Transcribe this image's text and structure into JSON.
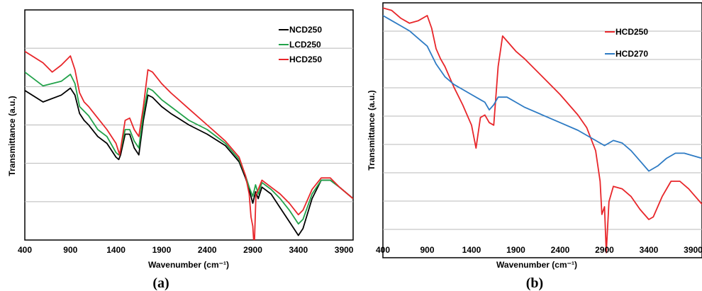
{
  "chart_data": [
    {
      "type": "line",
      "panel_label": "(a)",
      "xlabel": "Wavenumber (cm⁻¹)",
      "ylabel": "Transmittance (a.u.)",
      "xlim": [
        400,
        4000
      ],
      "ylim": [
        0,
        100
      ],
      "x_ticks": [
        400,
        900,
        1400,
        1900,
        2400,
        2900,
        3400,
        3900
      ],
      "grid": "horizontal",
      "legend_position": "top-right",
      "series": [
        {
          "name": "NCD250",
          "color": "#000000",
          "points": [
            [
              400,
              65
            ],
            [
              600,
              60
            ],
            [
              800,
              63
            ],
            [
              900,
              66
            ],
            [
              950,
              63
            ],
            [
              1000,
              55
            ],
            [
              1050,
              52
            ],
            [
              1100,
              50
            ],
            [
              1200,
              45
            ],
            [
              1300,
              42
            ],
            [
              1400,
              36
            ],
            [
              1430,
              35
            ],
            [
              1450,
              37
            ],
            [
              1500,
              46
            ],
            [
              1550,
              46
            ],
            [
              1600,
              40
            ],
            [
              1650,
              37
            ],
            [
              1700,
              52
            ],
            [
              1750,
              63
            ],
            [
              1800,
              62
            ],
            [
              1900,
              58
            ],
            [
              2000,
              55
            ],
            [
              2200,
              50
            ],
            [
              2400,
              46
            ],
            [
              2600,
              41
            ],
            [
              2750,
              34
            ],
            [
              2820,
              27
            ],
            [
              2860,
              22
            ],
            [
              2900,
              16
            ],
            [
              2930,
              21
            ],
            [
              2960,
              18
            ],
            [
              3000,
              23
            ],
            [
              3100,
              20
            ],
            [
              3200,
              14
            ],
            [
              3300,
              8
            ],
            [
              3400,
              2
            ],
            [
              3450,
              5
            ],
            [
              3550,
              18
            ],
            [
              3650,
              26
            ],
            [
              3750,
              26
            ],
            [
              3850,
              23
            ],
            [
              4000,
              18
            ]
          ]
        },
        {
          "name": "LCD250",
          "color": "#22a24a",
          "points": [
            [
              400,
              73
            ],
            [
              600,
              67
            ],
            [
              800,
              69
            ],
            [
              900,
              72
            ],
            [
              950,
              68
            ],
            [
              1000,
              58
            ],
            [
              1050,
              56
            ],
            [
              1100,
              54
            ],
            [
              1200,
              48
            ],
            [
              1300,
              45
            ],
            [
              1400,
              38
            ],
            [
              1430,
              37
            ],
            [
              1450,
              39
            ],
            [
              1500,
              48
            ],
            [
              1550,
              48
            ],
            [
              1600,
              43
            ],
            [
              1650,
              40
            ],
            [
              1700,
              55
            ],
            [
              1750,
              66
            ],
            [
              1800,
              65
            ],
            [
              1900,
              61
            ],
            [
              2000,
              58
            ],
            [
              2200,
              52
            ],
            [
              2400,
              48
            ],
            [
              2600,
              42
            ],
            [
              2750,
              35
            ],
            [
              2820,
              28
            ],
            [
              2860,
              23
            ],
            [
              2900,
              19
            ],
            [
              2930,
              24
            ],
            [
              2960,
              20
            ],
            [
              3000,
              25
            ],
            [
              3100,
              22
            ],
            [
              3200,
              18
            ],
            [
              3300,
              13
            ],
            [
              3400,
              7
            ],
            [
              3450,
              9
            ],
            [
              3550,
              20
            ],
            [
              3650,
              26
            ],
            [
              3750,
              26
            ],
            [
              3850,
              23
            ],
            [
              4000,
              18
            ]
          ]
        },
        {
          "name": "HCD250",
          "color": "#e8262a",
          "points": [
            [
              400,
              82
            ],
            [
              600,
              77
            ],
            [
              700,
              73
            ],
            [
              800,
              76
            ],
            [
              900,
              80
            ],
            [
              950,
              74
            ],
            [
              1000,
              64
            ],
            [
              1050,
              60
            ],
            [
              1100,
              58
            ],
            [
              1200,
              53
            ],
            [
              1300,
              48
            ],
            [
              1400,
              42
            ],
            [
              1440,
              37
            ],
            [
              1460,
              42
            ],
            [
              1500,
              52
            ],
            [
              1550,
              53
            ],
            [
              1600,
              48
            ],
            [
              1650,
              45
            ],
            [
              1700,
              58
            ],
            [
              1750,
              74
            ],
            [
              1800,
              73
            ],
            [
              1900,
              68
            ],
            [
              2000,
              64
            ],
            [
              2200,
              57
            ],
            [
              2400,
              50
            ],
            [
              2600,
              43
            ],
            [
              2750,
              36
            ],
            [
              2820,
              28
            ],
            [
              2860,
              20
            ],
            [
              2880,
              10
            ],
            [
              2900,
              6
            ],
            [
              2915,
              -4
            ],
            [
              2935,
              20
            ],
            [
              2960,
              22
            ],
            [
              3000,
              26
            ],
            [
              3100,
              23
            ],
            [
              3200,
              20
            ],
            [
              3300,
              16
            ],
            [
              3400,
              11
            ],
            [
              3450,
              13
            ],
            [
              3550,
              22
            ],
            [
              3650,
              27
            ],
            [
              3750,
              27
            ],
            [
              3850,
              23
            ],
            [
              4000,
              18
            ]
          ]
        }
      ]
    },
    {
      "type": "line",
      "panel_label": "(b)",
      "xlabel": "Wavenumber (cm⁻¹)",
      "ylabel": "Transmittance (a.u.)",
      "xlim": [
        400,
        4000
      ],
      "ylim": [
        0,
        100
      ],
      "x_ticks": [
        400,
        900,
        1400,
        1900,
        2400,
        2900,
        3400,
        3900
      ],
      "grid": "horizontal",
      "legend_position": "top-right",
      "series": [
        {
          "name": "HCD250",
          "color": "#e8262a",
          "points": [
            [
              400,
              98
            ],
            [
              500,
              97
            ],
            [
              600,
              94
            ],
            [
              700,
              92
            ],
            [
              800,
              93
            ],
            [
              900,
              95
            ],
            [
              950,
              90
            ],
            [
              1000,
              82
            ],
            [
              1050,
              78
            ],
            [
              1100,
              75
            ],
            [
              1200,
              67
            ],
            [
              1300,
              60
            ],
            [
              1400,
              52
            ],
            [
              1450,
              43
            ],
            [
              1500,
              55
            ],
            [
              1550,
              56
            ],
            [
              1600,
              53
            ],
            [
              1650,
              52
            ],
            [
              1700,
              75
            ],
            [
              1750,
              87
            ],
            [
              1800,
              85
            ],
            [
              1900,
              81
            ],
            [
              2000,
              78
            ],
            [
              2200,
              71
            ],
            [
              2400,
              64
            ],
            [
              2600,
              56
            ],
            [
              2700,
              51
            ],
            [
              2800,
              42
            ],
            [
              2850,
              30
            ],
            [
              2870,
              17
            ],
            [
              2900,
              20
            ],
            [
              2920,
              2
            ],
            [
              2950,
              22
            ],
            [
              3000,
              28
            ],
            [
              3100,
              27
            ],
            [
              3200,
              24
            ],
            [
              3300,
              19
            ],
            [
              3400,
              15
            ],
            [
              3450,
              16
            ],
            [
              3550,
              24
            ],
            [
              3650,
              30
            ],
            [
              3750,
              30
            ],
            [
              3850,
              27
            ],
            [
              4000,
              21
            ]
          ]
        },
        {
          "name": "HCD270",
          "color": "#2e7bc4",
          "points": [
            [
              400,
              95
            ],
            [
              500,
              93
            ],
            [
              600,
              91
            ],
            [
              700,
              89
            ],
            [
              800,
              86
            ],
            [
              900,
              83
            ],
            [
              1000,
              76
            ],
            [
              1100,
              71
            ],
            [
              1200,
              68
            ],
            [
              1300,
              66
            ],
            [
              1400,
              64
            ],
            [
              1500,
              62
            ],
            [
              1550,
              61
            ],
            [
              1600,
              58
            ],
            [
              1650,
              60
            ],
            [
              1700,
              63
            ],
            [
              1800,
              63
            ],
            [
              1900,
              61
            ],
            [
              2000,
              59
            ],
            [
              2200,
              56
            ],
            [
              2400,
              53
            ],
            [
              2600,
              50
            ],
            [
              2800,
              46
            ],
            [
              2900,
              44
            ],
            [
              2950,
              45
            ],
            [
              3000,
              46
            ],
            [
              3100,
              45
            ],
            [
              3200,
              42
            ],
            [
              3300,
              38
            ],
            [
              3400,
              34
            ],
            [
              3500,
              36
            ],
            [
              3600,
              39
            ],
            [
              3700,
              41
            ],
            [
              3800,
              41
            ],
            [
              3900,
              40
            ],
            [
              4000,
              39
            ]
          ]
        }
      ]
    }
  ]
}
